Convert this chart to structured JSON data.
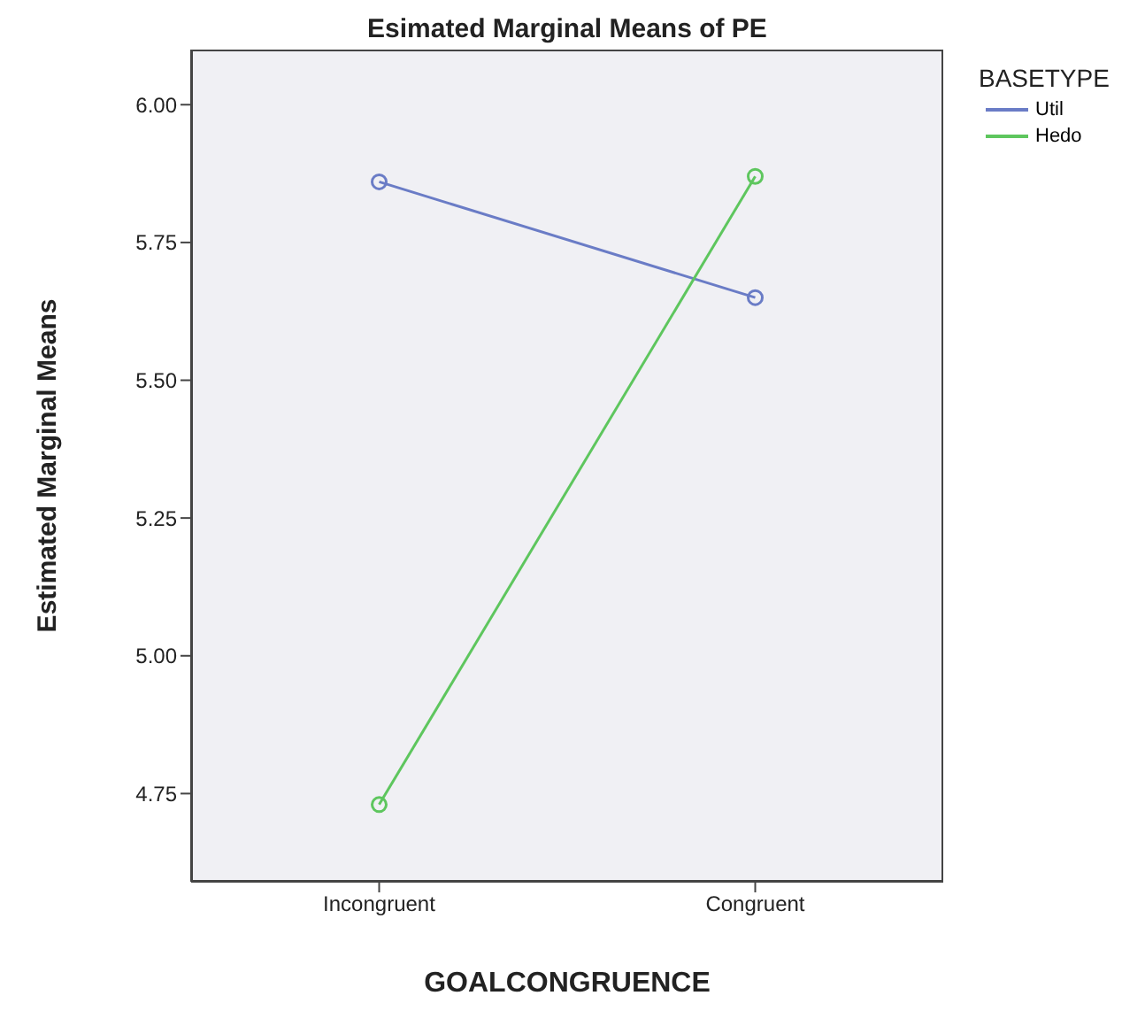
{
  "chart_data": {
    "type": "line",
    "title": "Esimated Marginal Means of PE",
    "xlabel": "GOALCONGRUENCE",
    "ylabel": "Estimated Marginal Means",
    "legend_title": "BASETYPE",
    "categories": [
      "Incongruent",
      "Congruent"
    ],
    "series": [
      {
        "name": "Util",
        "color": "#6a7cc6",
        "values": [
          5.86,
          5.65
        ]
      },
      {
        "name": "Hedo",
        "color": "#5ec65e",
        "values": [
          4.73,
          5.87
        ]
      }
    ],
    "ylim": [
      4.59,
      6.1
    ],
    "yticks": [
      {
        "value": 4.75,
        "label": "4.75"
      },
      {
        "value": 5,
        "label": "5.00"
      },
      {
        "value": 5.25,
        "label": "5.25"
      },
      {
        "value": 5.5,
        "label": "5.50"
      },
      {
        "value": 5.75,
        "label": "5.75"
      },
      {
        "value": 6,
        "label": "6.00"
      }
    ],
    "grid": false,
    "legend": "top right",
    "marker": "circle",
    "line_style": "solid"
  }
}
